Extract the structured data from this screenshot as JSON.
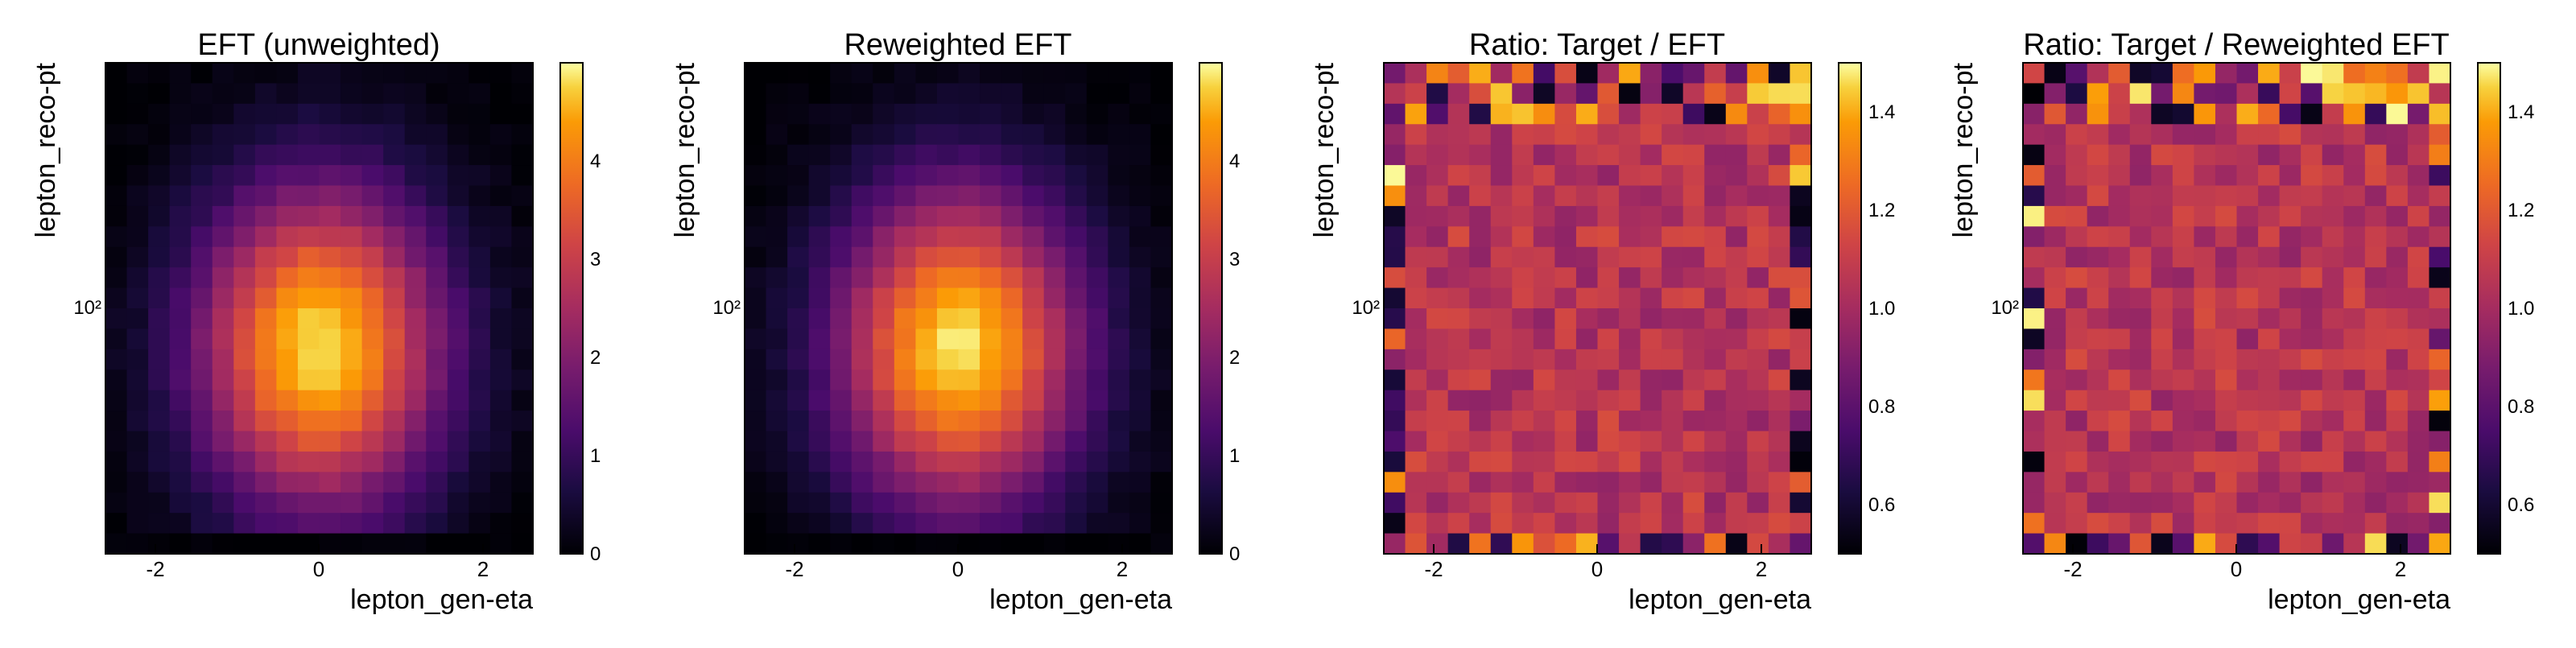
{
  "chart_data": [
    {
      "type": "heatmap",
      "title": "EFT (unweighted)",
      "xlabel": "lepton_gen-eta",
      "ylabel": "lepton_reco-pt",
      "x_ticks": [
        "-2",
        "0",
        "2"
      ],
      "y_ticks": [
        "10²"
      ],
      "y_scale": "log",
      "colorbar_ticks": [
        "0",
        "1",
        "2",
        "3",
        "4"
      ],
      "colorbar_range": [
        0,
        5
      ],
      "colormap": "inferno",
      "grid": false
    },
    {
      "type": "heatmap",
      "title": "Reweighted EFT",
      "xlabel": "lepton_gen-eta",
      "ylabel": "lepton_reco-pt",
      "x_ticks": [
        "-2",
        "0",
        "2"
      ],
      "y_ticks": [
        "10²"
      ],
      "y_scale": "log",
      "colorbar_ticks": [
        "0",
        "1",
        "2",
        "3",
        "4"
      ],
      "colorbar_range": [
        0,
        5
      ],
      "colormap": "inferno",
      "grid": false
    },
    {
      "type": "heatmap",
      "title": "Ratio: Target / EFT",
      "xlabel": "lepton_gen-eta",
      "ylabel": "lepton_reco-pt",
      "x_ticks": [
        "-2",
        "0",
        "2"
      ],
      "y_ticks": [
        "10²"
      ],
      "y_scale": "log",
      "colorbar_ticks": [
        "0.6",
        "0.8",
        "1.0",
        "1.2",
        "1.4"
      ],
      "colorbar_range": [
        0.5,
        1.5
      ],
      "colormap": "inferno",
      "grid": false
    },
    {
      "type": "heatmap",
      "title": "Ratio: Target / Reweighted EFT",
      "xlabel": "lepton_gen-eta",
      "ylabel": "lepton_reco-pt",
      "x_ticks": [
        "-2",
        "0",
        "2"
      ],
      "y_ticks": [
        "10²"
      ],
      "y_scale": "log",
      "colorbar_ticks": [
        "0.6",
        "0.8",
        "1.0",
        "1.2",
        "1.4"
      ],
      "colorbar_range": [
        0.5,
        1.5
      ],
      "colormap": "inferno",
      "grid": false
    }
  ]
}
